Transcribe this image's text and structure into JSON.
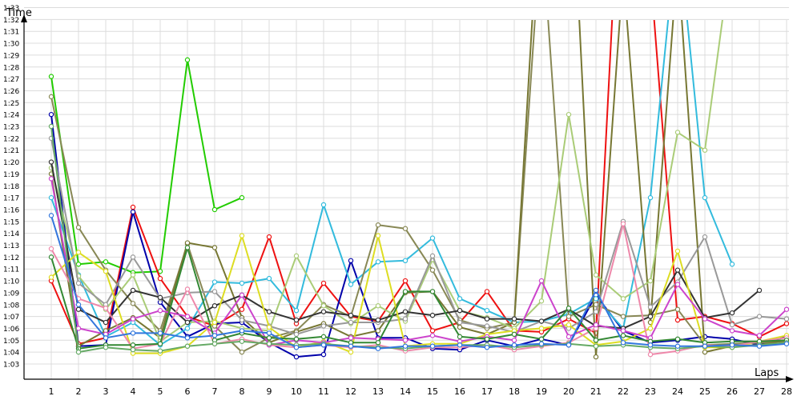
{
  "chart_data": {
    "type": "line",
    "ylabel": "Time",
    "xlabel": "Laps",
    "grid": true,
    "x": [
      1,
      2,
      3,
      4,
      5,
      6,
      7,
      8,
      9,
      10,
      11,
      12,
      13,
      14,
      15,
      16,
      17,
      18,
      19,
      20,
      21,
      22,
      23,
      24,
      25,
      26,
      27,
      28
    ],
    "y_ticks": [
      "1:03",
      "1:04",
      "1:05",
      "1:06",
      "1:07",
      "1:08",
      "1:09",
      "1:10",
      "1:11",
      "1:12",
      "1:13",
      "1:14",
      "1:15",
      "1:16",
      "1:17",
      "1:18",
      "1:19",
      "1:20",
      "1:21",
      "1:22",
      "1:23",
      "1:24",
      "1:25",
      "1:26",
      "1:27",
      "1:28",
      "1:29",
      "1:30",
      "1:31",
      "1:32",
      "1:33"
    ],
    "ylim_seconds": [
      62,
      94.5
    ],
    "series": [
      {
        "color": "#22cc00",
        "values": [
          87.2,
          71.4,
          71.6,
          70.7,
          70.8,
          88.6,
          76.0,
          77.0,
          null,
          null,
          null,
          null,
          null,
          null,
          null,
          null,
          null,
          null,
          null,
          null,
          null,
          null,
          null,
          null,
          null,
          null,
          null,
          null
        ]
      },
      {
        "color": "#ee1111",
        "values": [
          70.0,
          64.7,
          65.2,
          76.2,
          70.2,
          67.0,
          66.2,
          67.6,
          73.7,
          66.4,
          69.8,
          67.0,
          66.6,
          70.0,
          65.8,
          66.5,
          69.1,
          65.8,
          65.7,
          66.8,
          65.6,
          110.0,
          96.0,
          66.7,
          67.0,
          66.4,
          65.3,
          66.4
        ]
      },
      {
        "color": "#0000aa",
        "values": [
          84.0,
          64.5,
          64.6,
          75.8,
          68.2,
          65.3,
          66.4,
          66.5,
          64.8,
          63.6,
          63.8,
          71.7,
          65.2,
          65.2,
          64.3,
          64.2,
          65.0,
          64.5,
          65.1,
          64.6,
          68.8,
          65.8,
          64.8,
          65.0,
          65.3,
          65.1,
          64.6,
          65.3
        ]
      },
      {
        "color": "#33bbdd",
        "values": [
          77.0,
          70.5,
          65.3,
          66.5,
          64.6,
          66.0,
          69.9,
          69.8,
          70.2,
          67.5,
          76.4,
          69.7,
          71.6,
          71.7,
          73.6,
          68.5,
          67.5,
          66.5,
          66.6,
          67.2,
          68.5,
          66.0,
          77.0,
          100.0,
          77.0,
          71.4,
          null,
          null
        ]
      },
      {
        "color": "#888855",
        "values": [
          85.5,
          74.5,
          70.9,
          68.1,
          65.8,
          73.1,
          66.2,
          64.0,
          65.2,
          65.8,
          68.0,
          67.0,
          74.7,
          74.4,
          70.9,
          66.7,
          66.0,
          66.5,
          100.0,
          67.0,
          68.0,
          67.0,
          67.1,
          67.6,
          64.6,
          64.7,
          64.8,
          64.9
        ]
      },
      {
        "color": "#777733",
        "values": [
          79.0,
          64.5,
          65.8,
          66.9,
          65.2,
          73.2,
          72.8,
          66.9,
          64.8,
          65.7,
          66.4,
          65.3,
          65.8,
          69.0,
          69.1,
          66.1,
          65.5,
          66.5,
          105.0,
          110.0,
          63.6,
          96.0,
          66.5,
          97.0,
          64.0,
          64.5,
          64.6,
          65.0
        ]
      },
      {
        "color": "#aacc77",
        "values": [
          79.5,
          70.4,
          67.6,
          70.5,
          64.9,
          66.5,
          66.6,
          66.0,
          65.8,
          72.1,
          67.9,
          66.4,
          67.9,
          66.6,
          71.8,
          67.5,
          66.9,
          66.0,
          68.3,
          84.0,
          70.5,
          68.5,
          70.0,
          82.5,
          81.0,
          98.0,
          null,
          null
        ]
      },
      {
        "color": "#999999",
        "values": [
          82.0,
          69.8,
          68.0,
          72.0,
          68.5,
          69.0,
          69.1,
          66.7,
          66.2,
          65.5,
          66.2,
          66.5,
          66.5,
          66.8,
          72.1,
          66.5,
          66.2,
          65.7,
          66.6,
          66.0,
          67.4,
          75.0,
          67.8,
          69.9,
          73.7,
          66.3,
          67.0,
          66.8
        ]
      },
      {
        "color": "#333333",
        "values": [
          80.0,
          67.6,
          66.5,
          69.2,
          68.6,
          66.5,
          67.9,
          68.8,
          67.4,
          66.7,
          67.4,
          67.1,
          66.7,
          67.4,
          67.1,
          67.5,
          66.8,
          66.8,
          66.6,
          67.6,
          66.2,
          66.0,
          67.0,
          70.9,
          66.9,
          67.3,
          69.2,
          null
        ]
      },
      {
        "color": "#dddd22",
        "values": [
          70.3,
          72.4,
          70.8,
          63.9,
          63.9,
          64.5,
          66.5,
          73.8,
          66.1,
          64.4,
          64.9,
          64.0,
          73.8,
          64.5,
          64.7,
          64.7,
          65.5,
          65.8,
          66.0,
          66.3,
          64.6,
          64.9,
          66.0,
          72.5,
          64.4,
          64.4,
          64.9,
          65.4
        ]
      },
      {
        "color": "#ee88aa",
        "values": [
          72.7,
          68.5,
          67.7,
          64.3,
          64.7,
          69.3,
          64.7,
          65.1,
          64.6,
          64.4,
          64.6,
          64.4,
          64.6,
          64.1,
          64.4,
          64.4,
          64.6,
          64.2,
          64.5,
          64.8,
          66.0,
          74.8,
          63.8,
          64.1,
          64.6,
          64.5,
          64.9,
          65.2
        ]
      },
      {
        "color": "#cc44cc",
        "values": [
          78.6,
          66.0,
          65.5,
          66.8,
          67.5,
          67.0,
          65.6,
          68.8,
          64.6,
          65.0,
          64.8,
          65.2,
          65.1,
          65.0,
          65.4,
          64.9,
          65.3,
          65.0,
          70.0,
          65.3,
          66.3,
          65.8,
          65.2,
          69.7,
          66.8,
          65.8,
          65.4,
          67.6
        ]
      },
      {
        "color": "#338833",
        "values": [
          72.0,
          64.3,
          64.6,
          64.6,
          64.7,
          72.8,
          65.0,
          65.6,
          65.2,
          65.1,
          65.3,
          64.8,
          64.8,
          69.1,
          69.1,
          65.3,
          65.1,
          65.5,
          65.1,
          67.7,
          65.0,
          65.4,
          64.9,
          65.1,
          64.8,
          64.9,
          64.9,
          65.0
        ]
      },
      {
        "color": "#66aa66",
        "values": [
          83.0,
          64.0,
          64.4,
          64.2,
          64.1,
          64.5,
          64.7,
          64.9,
          64.7,
          64.6,
          64.7,
          64.5,
          64.4,
          64.3,
          64.5,
          64.6,
          64.6,
          64.4,
          64.6,
          64.7,
          64.5,
          64.6,
          64.4,
          64.3,
          64.5,
          64.4,
          64.6,
          64.8
        ]
      },
      {
        "color": "#3377dd",
        "values": [
          75.5,
          68.0,
          65.2,
          65.6,
          65.6,
          65.2,
          65.4,
          65.8,
          65.6,
          64.4,
          64.6,
          64.5,
          64.3,
          64.5,
          64.5,
          64.6,
          64.4,
          64.6,
          64.7,
          64.6,
          69.2,
          64.8,
          64.6,
          64.5,
          64.5,
          64.6,
          64.5,
          64.7
        ]
      }
    ]
  }
}
